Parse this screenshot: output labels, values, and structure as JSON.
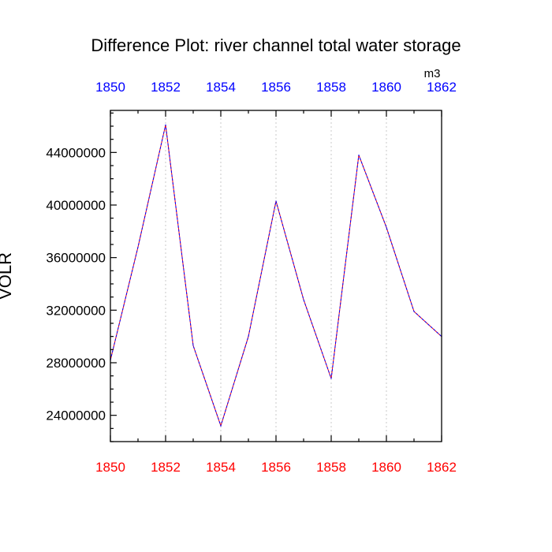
{
  "chart_data": {
    "type": "line",
    "title": "Difference Plot: river channel total water storage",
    "units_label": "m3",
    "ylabel": "VOLR",
    "x": [
      1850,
      1851,
      1852,
      1853,
      1854,
      1855,
      1856,
      1857,
      1858,
      1859,
      1860,
      1861,
      1862
    ],
    "series": [
      {
        "values": [
          28200000,
          36800000,
          46100000,
          29300000,
          23200000,
          30000000,
          40300000,
          32800000,
          26800000,
          43800000,
          38300000,
          31900000,
          30000000
        ],
        "color": "#0000ff",
        "overlay_color": "#ff0000"
      }
    ],
    "xlim": [
      1850,
      1862
    ],
    "ylim": [
      22000000,
      47200000
    ],
    "x_ticks": [
      1850,
      1852,
      1854,
      1856,
      1858,
      1860,
      1862
    ],
    "y_ticks": [
      24000000,
      28000000,
      32000000,
      36000000,
      40000000,
      44000000
    ],
    "y_tick_labels": [
      "24000000",
      "28000000",
      "32000000",
      "36000000",
      "40000000",
      "44000000"
    ],
    "x_grid": true,
    "top_axis_color": "#0000ff",
    "bottom_axis_color": "#ff0000"
  }
}
